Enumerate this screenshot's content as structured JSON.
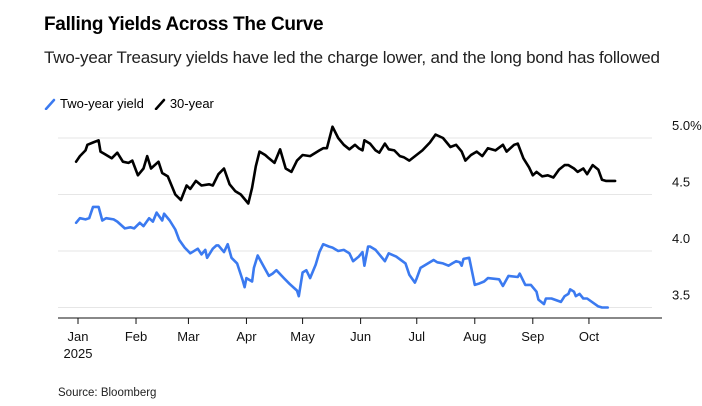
{
  "header": {
    "title": "Falling Yields Across The Curve",
    "subtitle": "Two-year Treasury yields have led the charge lower, and the long bond has followed"
  },
  "legend": [
    {
      "label": "Two-year yield",
      "color": "#3b7af0",
      "icon": "diagonal-line-icon"
    },
    {
      "label": "30-year",
      "color": "#000000",
      "icon": "diagonal-line-icon"
    }
  ],
  "footer": {
    "source": "Source: Bloomberg"
  },
  "chart_data": {
    "type": "line",
    "title": "Falling Yields Across The Curve",
    "subtitle": "Two-year Treasury yields have led the charge lower, and the long bond has followed",
    "xlabel": "",
    "ylabel": "",
    "x_unit": "day of year 2025",
    "xlim": [
      -11,
      312
    ],
    "ylim": [
      3.4,
      5.1
    ],
    "y_ticks": [
      {
        "value": 5.0,
        "label": "5.0%"
      },
      {
        "value": 4.5,
        "label": "4.5"
      },
      {
        "value": 4.0,
        "label": "4.0"
      },
      {
        "value": 3.5,
        "label": "3.5"
      }
    ],
    "x_ticks": [
      {
        "value": 0,
        "label": "Jan",
        "sublabel": "2025"
      },
      {
        "value": 31,
        "label": "Feb"
      },
      {
        "value": 59,
        "label": "Mar"
      },
      {
        "value": 90,
        "label": "Apr"
      },
      {
        "value": 120,
        "label": "May"
      },
      {
        "value": 151,
        "label": "Jun"
      },
      {
        "value": 181,
        "label": "Jul"
      },
      {
        "value": 212,
        "label": "Aug"
      },
      {
        "value": 243,
        "label": "Sep"
      },
      {
        "value": 273,
        "label": "Oct"
      }
    ],
    "grid": "horizontal",
    "legend_position": "top-left",
    "y_axis_position": "right",
    "series": [
      {
        "name": "Two-year yield",
        "color": "#3b7af0",
        "x": [
          -1,
          1,
          4,
          6,
          8,
          11,
          13,
          15,
          19,
          21,
          25,
          28,
          30,
          33,
          35,
          38,
          40,
          42,
          45,
          46,
          49,
          52,
          54,
          57,
          60,
          64,
          66,
          68,
          69,
          72,
          74,
          75,
          78,
          80,
          82,
          85,
          88,
          89,
          90,
          93,
          94,
          96,
          99,
          102,
          104,
          106,
          110,
          113,
          117,
          118,
          120,
          122,
          124,
          127,
          129,
          131,
          134,
          136,
          139,
          142,
          145,
          147,
          150,
          152,
          153,
          155,
          156,
          159,
          164,
          166,
          170,
          175,
          177,
          180,
          181,
          183,
          187,
          190,
          192,
          195,
          198,
          200,
          202,
          204,
          205,
          206,
          209,
          212,
          214,
          217,
          219,
          225,
          227,
          230,
          235,
          236,
          239,
          242,
          245,
          246,
          249,
          250,
          253,
          258,
          260,
          262,
          263,
          265,
          266,
          268,
          270,
          272,
          278,
          280,
          283
        ],
        "values": [
          4.25,
          4.29,
          4.28,
          4.29,
          4.39,
          4.39,
          4.27,
          4.29,
          4.28,
          4.26,
          4.2,
          4.21,
          4.2,
          4.25,
          4.22,
          4.29,
          4.26,
          4.34,
          4.27,
          4.33,
          4.27,
          4.19,
          4.1,
          4.03,
          3.98,
          4.02,
          3.97,
          4.01,
          3.94,
          4.02,
          4.05,
          4.05,
          3.99,
          4.06,
          3.94,
          3.89,
          3.74,
          3.68,
          3.76,
          3.73,
          3.85,
          3.96,
          3.87,
          3.78,
          3.8,
          3.83,
          3.76,
          3.71,
          3.65,
          3.6,
          3.81,
          3.83,
          3.76,
          3.88,
          3.99,
          4.06,
          4.04,
          4.03,
          4.0,
          4.01,
          3.98,
          3.91,
          3.95,
          3.99,
          3.87,
          4.04,
          4.04,
          4.01,
          3.91,
          3.98,
          3.95,
          3.89,
          3.79,
          3.72,
          3.76,
          3.85,
          3.89,
          3.92,
          3.9,
          3.89,
          3.87,
          3.89,
          3.91,
          3.9,
          3.87,
          3.93,
          3.94,
          3.7,
          3.71,
          3.73,
          3.76,
          3.75,
          3.69,
          3.78,
          3.77,
          3.8,
          3.7,
          3.7,
          3.64,
          3.57,
          3.53,
          3.58,
          3.58,
          3.55,
          3.6,
          3.62,
          3.66,
          3.64,
          3.6,
          3.62,
          3.58,
          3.58,
          3.51,
          3.5,
          3.5
        ]
      },
      {
        "name": "30-year",
        "color": "#000000",
        "x": [
          -1,
          1,
          4,
          5,
          8,
          11,
          12,
          14,
          18,
          21,
          24,
          27,
          29,
          32,
          35,
          37,
          39,
          43,
          45,
          48,
          52,
          55,
          58,
          60,
          63,
          66,
          70,
          72,
          75,
          78,
          81,
          84,
          87,
          91,
          93,
          95,
          97,
          100,
          102,
          105,
          108,
          111,
          114,
          117,
          120,
          124,
          129,
          131,
          133,
          136,
          139,
          142,
          145,
          148,
          150,
          152,
          153,
          156,
          159,
          161,
          164,
          166,
          169,
          172,
          174,
          177,
          184,
          188,
          191,
          195,
          199,
          202,
          205,
          207,
          210,
          213,
          216,
          219,
          223,
          227,
          229,
          233,
          235,
          238,
          241,
          243,
          245,
          248,
          251,
          254,
          257,
          260,
          262,
          265,
          267,
          270,
          272,
          275,
          278,
          280,
          282,
          287
        ],
        "values": [
          4.79,
          4.84,
          4.89,
          4.94,
          4.96,
          4.98,
          4.88,
          4.86,
          4.82,
          4.87,
          4.79,
          4.78,
          4.8,
          4.67,
          4.73,
          4.84,
          4.73,
          4.79,
          4.69,
          4.66,
          4.5,
          4.45,
          4.58,
          4.55,
          4.62,
          4.58,
          4.59,
          4.58,
          4.68,
          4.73,
          4.59,
          4.53,
          4.5,
          4.42,
          4.56,
          4.75,
          4.88,
          4.85,
          4.82,
          4.78,
          4.9,
          4.73,
          4.7,
          4.8,
          4.85,
          4.84,
          4.89,
          4.91,
          4.91,
          5.1,
          5.0,
          4.94,
          4.9,
          4.94,
          4.91,
          4.89,
          4.98,
          4.95,
          4.89,
          4.87,
          4.95,
          4.9,
          4.89,
          4.84,
          4.83,
          4.8,
          4.89,
          4.96,
          5.03,
          5.0,
          4.92,
          4.94,
          4.88,
          4.8,
          4.85,
          4.88,
          4.84,
          4.91,
          4.89,
          4.94,
          4.88,
          4.94,
          4.95,
          4.82,
          4.74,
          4.67,
          4.7,
          4.66,
          4.67,
          4.65,
          4.72,
          4.76,
          4.76,
          4.73,
          4.7,
          4.73,
          4.68,
          4.76,
          4.72,
          4.63,
          4.62,
          4.62
        ]
      }
    ]
  }
}
